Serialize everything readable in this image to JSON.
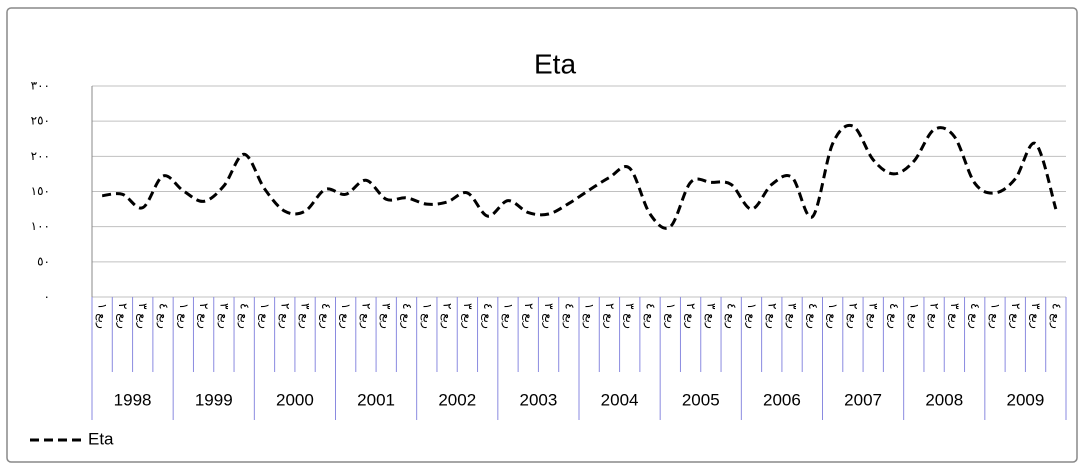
{
  "chart_data": {
    "type": "line",
    "title": "Eta",
    "categories": [
      "ربع ١",
      "ربع ٢",
      "ربع ٣",
      "ربع ٤",
      "ربع ١",
      "ربع ٢",
      "ربع ٣",
      "ربع ٤",
      "ربع ١",
      "ربع ٢",
      "ربع ٣",
      "ربع ٤",
      "ربع ١",
      "ربع ٢",
      "ربع ٣",
      "ربع ٤",
      "ربع ١",
      "ربع ٢",
      "ربع ٣",
      "ربع ٤",
      "ربع ١",
      "ربع ٢",
      "ربع ٣",
      "ربع ٤",
      "ربع ١",
      "ربع ٢",
      "ربع ٣",
      "ربع ٤",
      "ربع ١",
      "ربع ٢",
      "ربع ٣",
      "ربع ٤",
      "ربع ١",
      "ربع ٢",
      "ربع ٣",
      "ربع ٤",
      "ربع ١",
      "ربع ٢",
      "ربع ٣",
      "ربع ٤",
      "ربع ١",
      "ربع ٢",
      "ربع ٣",
      "ربع ٤",
      "ربع ١",
      "ربع ٢",
      "ربع ٣",
      "ربع ٤"
    ],
    "groups": [
      "1998",
      "1999",
      "2000",
      "2001",
      "2002",
      "2003",
      "2004",
      "2005",
      "2006",
      "2007",
      "2008",
      "2009"
    ],
    "series": [
      {
        "name": "Eta",
        "color": "#000000",
        "values": [
          144,
          146,
          127,
          172,
          151,
          136,
          158,
          203,
          154,
          122,
          122,
          153,
          146,
          166,
          139,
          141,
          132,
          135,
          148,
          115,
          137,
          120,
          118,
          133,
          152,
          170,
          183,
          118,
          100,
          163,
          163,
          160,
          125,
          160,
          170,
          114,
          218,
          243,
          195,
          175,
          193,
          238,
          228,
          162,
          148,
          168,
          218,
          125
        ]
      }
    ],
    "ylim": [
      0,
      300
    ],
    "yticks": [
      {
        "value": 0,
        "label": "٠"
      },
      {
        "value": 50,
        "label": "٥٠"
      },
      {
        "value": 100,
        "label": "١٠٠"
      },
      {
        "value": 150,
        "label": "١٥٠"
      },
      {
        "value": 200,
        "label": "٢٠٠"
      },
      {
        "value": 250,
        "label": "٢٥٠"
      },
      {
        "value": 300,
        "label": "٣٠٠"
      }
    ],
    "grid": true,
    "legend": "bottom-left"
  }
}
